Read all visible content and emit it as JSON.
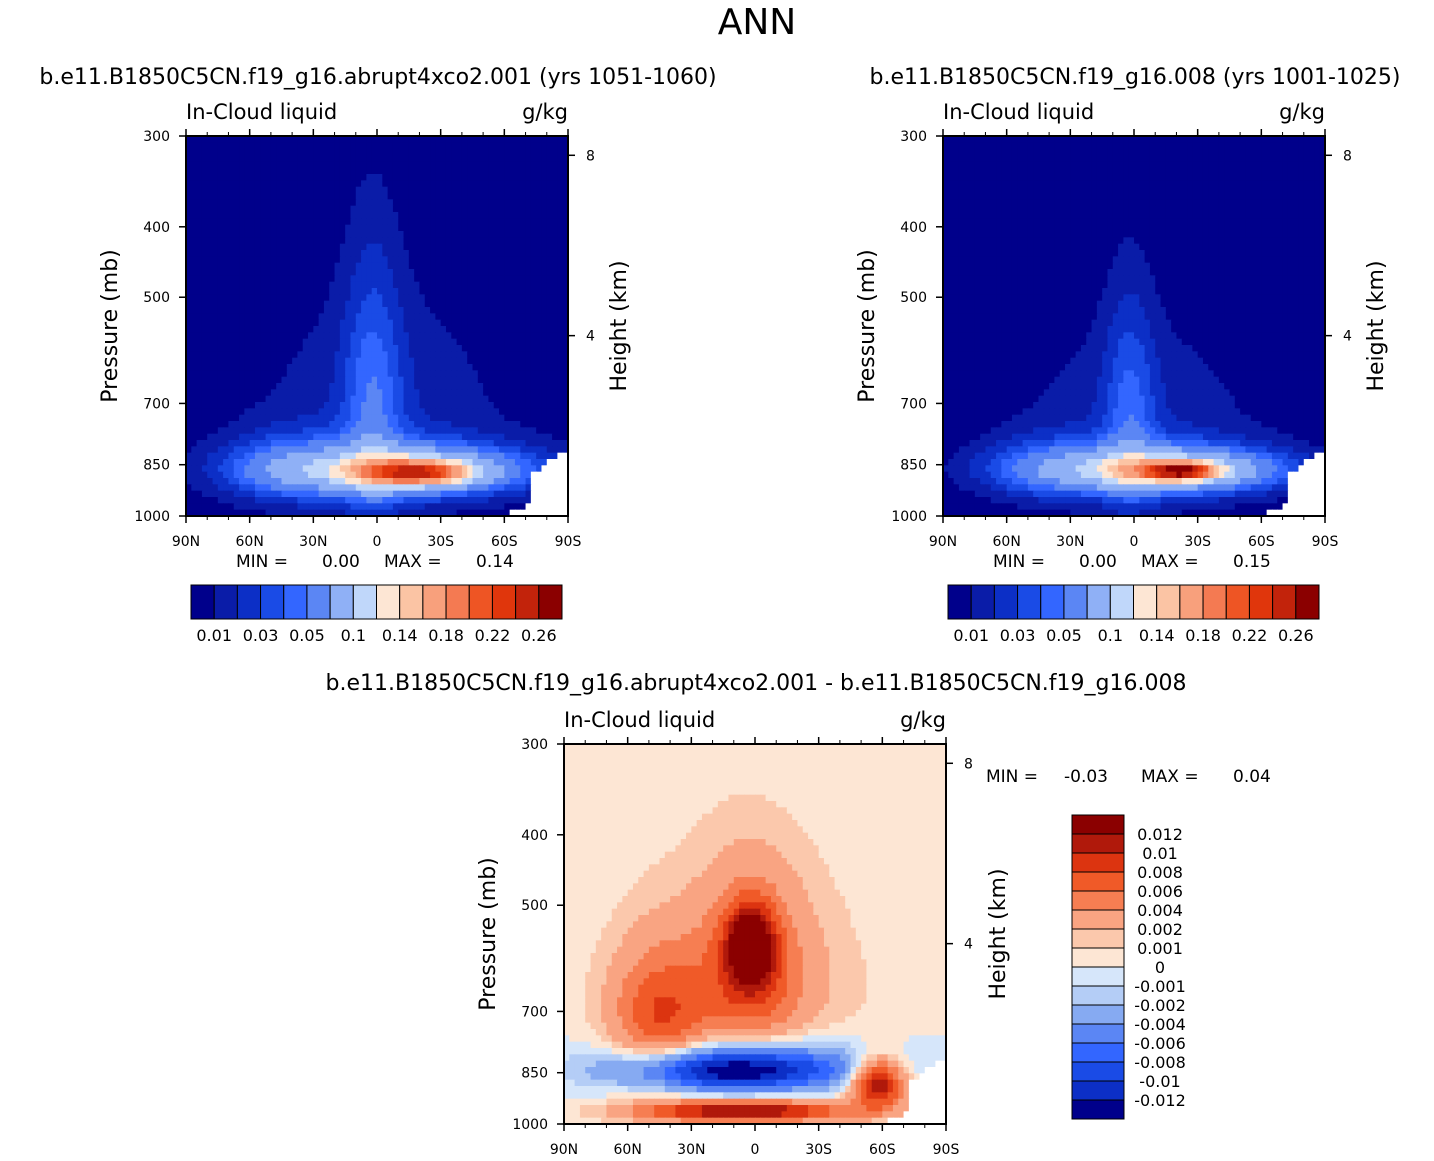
{
  "figure": {
    "title": "ANN"
  },
  "chart_data": [
    {
      "type": "heatmap",
      "id": "p1",
      "subtitle": "b.e11.B1850C5CN.f19_g16.abrupt4xco2.001 (yrs 1051-1060)",
      "left_label": "In-Cloud liquid",
      "right_label": "g/kg",
      "xlabel": "",
      "ylabel": "Pressure (mb)",
      "y2label": "Height (km)",
      "x_ticks": [
        "90N",
        "60N",
        "30N",
        "0",
        "30S",
        "60S",
        "90S"
      ],
      "y_ticks": [
        "300",
        "400",
        "500",
        "700",
        "850",
        "1000"
      ],
      "y_tick_values": [
        300,
        400,
        500,
        700,
        850,
        1000
      ],
      "ylim": [
        1000,
        300
      ],
      "xlim": [
        90,
        -90
      ],
      "y2_ticks": [
        "8",
        "4"
      ],
      "min_label": "MIN =",
      "min_value": "0.00",
      "max_label": "MAX =",
      "max_value": "0.14",
      "colorbar_labels": [
        "0.01",
        "0.03",
        "0.05",
        "0.1",
        "0.14",
        "0.18",
        "0.22",
        "0.26"
      ],
      "colorbar_levels": [
        0.01,
        0.02,
        0.03,
        0.04,
        0.05,
        0.07,
        0.1,
        0.12,
        0.14,
        0.16,
        0.18,
        0.2,
        0.22,
        0.24,
        0.26
      ],
      "colors": [
        "#00008b",
        "#0a1ca8",
        "#0c2fc6",
        "#1a4be6",
        "#3366ff",
        "#5b86f4",
        "#8fb0f6",
        "#c0d7fa",
        "#fde6d4",
        "#fbc4a4",
        "#f8a07c",
        "#f47a52",
        "#ee5524",
        "#e0360c",
        "#c2230b",
        "#8b0000"
      ],
      "features": [
        {
          "name": "low-cloud-deck",
          "lat": -8,
          "p": 862,
          "w": 72,
          "h": 80,
          "v": 0.05
        },
        {
          "name": "inner-deck",
          "lat": -12,
          "p": 868,
          "w": 48,
          "h": 55,
          "v": 0.08
        },
        {
          "name": "peak",
          "lat": -20,
          "p": 872,
          "w": 22,
          "h": 30,
          "v": 0.12
        },
        {
          "name": "itcz-tower",
          "lat": 2,
          "p": 700,
          "w": 14,
          "h": 300,
          "v": 0.035
        },
        {
          "name": "broad-tropics",
          "lat": -2,
          "p": 740,
          "w": 70,
          "h": 320,
          "v": 0.02
        },
        {
          "name": "nh-midlat",
          "lat": 45,
          "p": 860,
          "w": 30,
          "h": 100,
          "v": 0.025
        }
      ]
    },
    {
      "type": "heatmap",
      "id": "p2",
      "subtitle": "b.e11.B1850C5CN.f19_g16.008 (yrs 1001-1025)",
      "left_label": "In-Cloud liquid",
      "right_label": "g/kg",
      "xlabel": "",
      "ylabel": "Pressure (mb)",
      "y2label": "Height (km)",
      "x_ticks": [
        "90N",
        "60N",
        "30N",
        "0",
        "30S",
        "60S",
        "90S"
      ],
      "y_ticks": [
        "300",
        "400",
        "500",
        "700",
        "850",
        "1000"
      ],
      "y_tick_values": [
        300,
        400,
        500,
        700,
        850,
        1000
      ],
      "ylim": [
        1000,
        300
      ],
      "xlim": [
        90,
        -90
      ],
      "y2_ticks": [
        "8",
        "4"
      ],
      "min_label": "MIN =",
      "min_value": "0.00",
      "max_label": "MAX =",
      "max_value": "0.15",
      "colorbar_labels": [
        "0.01",
        "0.03",
        "0.05",
        "0.1",
        "0.14",
        "0.18",
        "0.22",
        "0.26"
      ],
      "colorbar_levels": [
        0.01,
        0.02,
        0.03,
        0.04,
        0.05,
        0.07,
        0.1,
        0.12,
        0.14,
        0.16,
        0.18,
        0.2,
        0.22,
        0.24,
        0.26
      ],
      "colors": [
        "#00008b",
        "#0a1ca8",
        "#0c2fc6",
        "#1a4be6",
        "#3366ff",
        "#5b86f4",
        "#8fb0f6",
        "#c0d7fa",
        "#fde6d4",
        "#fbc4a4",
        "#f8a07c",
        "#f47a52",
        "#ee5524",
        "#e0360c",
        "#c2230b",
        "#8b0000"
      ],
      "features": [
        {
          "name": "low-cloud-deck",
          "lat": -8,
          "p": 862,
          "w": 70,
          "h": 75,
          "v": 0.05
        },
        {
          "name": "inner-deck",
          "lat": -14,
          "p": 866,
          "w": 45,
          "h": 50,
          "v": 0.085
        },
        {
          "name": "peak",
          "lat": -22,
          "p": 868,
          "w": 16,
          "h": 22,
          "v": 0.15
        },
        {
          "name": "itcz-tower",
          "lat": 2,
          "p": 720,
          "w": 12,
          "h": 260,
          "v": 0.03
        },
        {
          "name": "broad-tropics",
          "lat": -2,
          "p": 760,
          "w": 65,
          "h": 280,
          "v": 0.02
        },
        {
          "name": "nh-midlat",
          "lat": 45,
          "p": 860,
          "w": 28,
          "h": 90,
          "v": 0.02
        }
      ]
    },
    {
      "type": "heatmap",
      "id": "p3",
      "subtitle": "b.e11.B1850C5CN.f19_g16.abrupt4xco2.001 - b.e11.B1850C5CN.f19_g16.008",
      "left_label": "In-Cloud liquid",
      "right_label": "g/kg",
      "xlabel": "",
      "ylabel": "Pressure (mb)",
      "y2label": "Height (km)",
      "x_ticks": [
        "90N",
        "60N",
        "30N",
        "0",
        "30S",
        "60S",
        "90S"
      ],
      "y_ticks": [
        "300",
        "400",
        "500",
        "700",
        "850",
        "1000"
      ],
      "y_tick_values": [
        300,
        400,
        500,
        700,
        850,
        1000
      ],
      "ylim": [
        1000,
        300
      ],
      "xlim": [
        90,
        -90
      ],
      "y2_ticks": [
        "8",
        "4"
      ],
      "min_label": "MIN =",
      "min_value": "-0.03",
      "max_label": "MAX =",
      "max_value": "0.04",
      "colorbar_labels": [
        "0.012",
        "0.01",
        "0.008",
        "0.006",
        "0.004",
        "0.002",
        "0.001",
        "0",
        "-0.001",
        "-0.002",
        "-0.004",
        "-0.006",
        "-0.008",
        "-0.01",
        "-0.012"
      ],
      "colorbar_levels": [
        0.012,
        0.01,
        0.008,
        0.006,
        0.004,
        0.002,
        0.001,
        0,
        -0.001,
        -0.002,
        -0.004,
        -0.006,
        -0.008,
        -0.01,
        -0.012
      ],
      "colors": [
        "#8b0000",
        "#b0190b",
        "#dc3410",
        "#f05a28",
        "#f67e52",
        "#f9a482",
        "#fbc8ac",
        "#fde6d4",
        "#d6e6fa",
        "#b4cdf6",
        "#86aaf2",
        "#5b86f4",
        "#3366ff",
        "#1a4be6",
        "#0c2fc6",
        "#00008b"
      ],
      "features": [
        {
          "name": "upper-tropics-increase",
          "lat": 2,
          "p": 570,
          "w": 11,
          "h": 70,
          "v": 0.012
        },
        {
          "name": "tropics-increase-halo",
          "lat": 2,
          "p": 620,
          "w": 24,
          "h": 160,
          "v": 0.006
        },
        {
          "name": "broad-increase",
          "lat": 5,
          "p": 700,
          "w": 62,
          "h": 300,
          "v": 0.0025
        },
        {
          "name": "nh-increase",
          "lat": 45,
          "p": 720,
          "w": 22,
          "h": 150,
          "v": 0.007
        },
        {
          "name": "low-level-decrease",
          "lat": 10,
          "p": 845,
          "w": 50,
          "h": 55,
          "v": -0.013
        },
        {
          "name": "decrease-halo",
          "lat": 5,
          "p": 820,
          "w": 62,
          "h": 85,
          "v": -0.004
        },
        {
          "name": "sh-increase",
          "lat": -58,
          "p": 880,
          "w": 12,
          "h": 65,
          "v": 0.013
        },
        {
          "name": "surface-increase",
          "lat": 5,
          "p": 960,
          "w": 48,
          "h": 30,
          "v": 0.012
        }
      ]
    }
  ]
}
